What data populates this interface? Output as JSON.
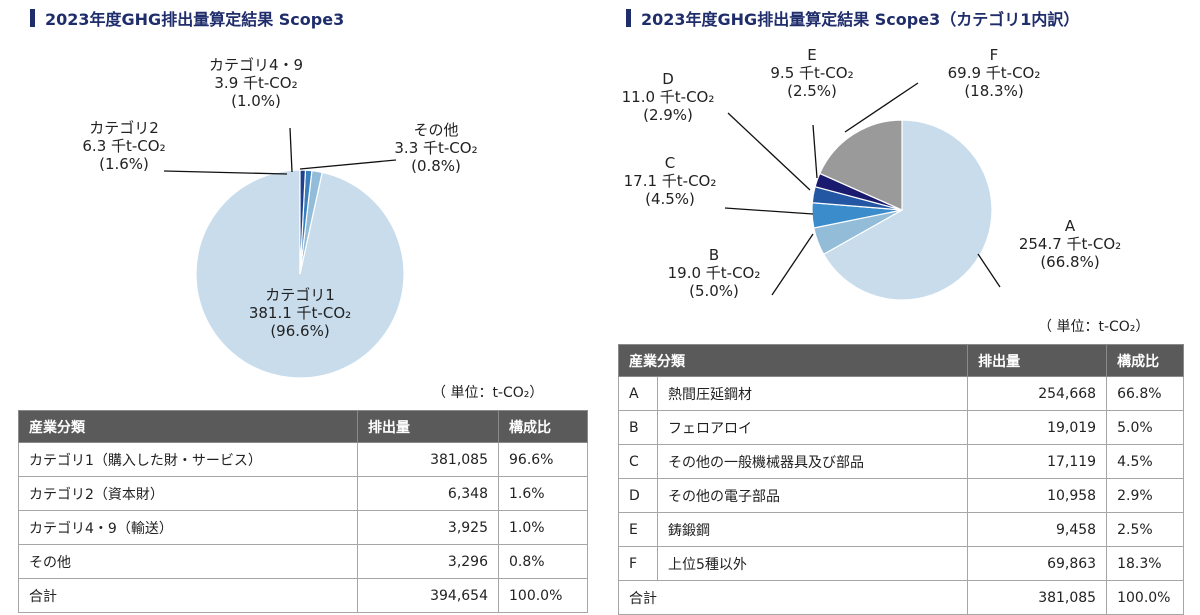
{
  "left": {
    "title": "2023年度GHG排出量算定結果 Scope3",
    "unit": "（ 単位：t-CO₂）",
    "table": {
      "headers": [
        "産業分類",
        "排出量",
        "構成比"
      ],
      "rows": [
        {
          "name": "カテゴリ1（購入した財・サービス）",
          "value": "381,085",
          "share": "96.6%"
        },
        {
          "name": "カテゴリ2（資本財）",
          "value": "6,348",
          "share": "1.6%"
        },
        {
          "name": "カテゴリ4・9（輸送）",
          "value": "3,925",
          "share": "1.0%"
        },
        {
          "name": "その他",
          "value": "3,296",
          "share": "0.8%"
        }
      ],
      "total": {
        "name": "合計",
        "value": "394,654",
        "share": "100.0%"
      }
    }
  },
  "right": {
    "title": "2023年度GHG排出量算定結果 Scope3（カテゴリ1内訳）",
    "unit": "（ 単位：t-CO₂）",
    "table": {
      "headers": [
        "産業分類",
        "排出量",
        "構成比"
      ],
      "rows": [
        {
          "code": "A",
          "name": "熱間圧延鋼材",
          "value": "254,668",
          "share": "66.8%"
        },
        {
          "code": "B",
          "name": "フェロアロイ",
          "value": "19,019",
          "share": "5.0%"
        },
        {
          "code": "C",
          "name": "その他の一般機械器具及び部品",
          "value": "17,119",
          "share": "4.5%"
        },
        {
          "code": "D",
          "name": "その他の電子部品",
          "value": "10,958",
          "share": "2.9%"
        },
        {
          "code": "E",
          "name": "鋳鍛鋼",
          "value": "9,458",
          "share": "2.5%"
        },
        {
          "code": "F",
          "name": "上位5種以外",
          "value": "69,863",
          "share": "18.3%"
        }
      ],
      "total": {
        "name": "合計",
        "value": "381,085",
        "share": "100.0%"
      }
    }
  },
  "chart_data": [
    {
      "type": "pie",
      "title": "2023年度GHG排出量算定結果 Scope3",
      "unit": "千t-CO₂",
      "slices": [
        {
          "name": "カテゴリ1",
          "value": 381.1,
          "percent": "96.6%",
          "color": "#c8dcec",
          "value_label": "381.1 千t-CO₂",
          "pct_label": "(96.6%)"
        },
        {
          "name": "カテゴリ2",
          "value": 6.3,
          "percent": "1.6%",
          "color": "#93bcd9",
          "value_label": "6.3 千t-CO₂",
          "pct_label": "(1.6%)"
        },
        {
          "name": "カテゴリ4・9",
          "value": 3.9,
          "percent": "1.0%",
          "color": "#3a7fbd",
          "value_label": "3.9 千t-CO₂",
          "pct_label": "(1.0%)"
        },
        {
          "name": "その他",
          "value": 3.3,
          "percent": "0.8%",
          "color": "#1f3f8e",
          "value_label": "3.3 千t-CO₂",
          "pct_label": "(0.8%)"
        }
      ]
    },
    {
      "type": "pie",
      "title": "2023年度GHG排出量算定結果 Scope3（カテゴリ1内訳）",
      "unit": "千t-CO₂",
      "slices": [
        {
          "name": "A",
          "value": 254.7,
          "percent": "66.8%",
          "color": "#c8dcec",
          "value_label": "254.7 千t-CO₂",
          "pct_label": "(66.8%)"
        },
        {
          "name": "B",
          "value": 19.0,
          "percent": "5.0%",
          "color": "#93bcd9",
          "value_label": "19.0 千t-CO₂",
          "pct_label": "(5.0%)"
        },
        {
          "name": "C",
          "value": 17.1,
          "percent": "4.5%",
          "color": "#3a8ccb",
          "value_label": "17.1 千t-CO₂",
          "pct_label": "(4.5%)"
        },
        {
          "name": "D",
          "value": 11.0,
          "percent": "2.9%",
          "color": "#2356a3",
          "value_label": "11.0 千t-CO₂",
          "pct_label": "(2.9%)"
        },
        {
          "name": "E",
          "value": 9.5,
          "percent": "2.5%",
          "color": "#1a1a6e",
          "value_label": "9.5 千t-CO₂",
          "pct_label": "(2.5%)"
        },
        {
          "name": "F",
          "value": 69.9,
          "percent": "18.3%",
          "color": "#9a9a9a",
          "value_label": "69.9 千t-CO₂",
          "pct_label": "(18.3%)"
        }
      ]
    }
  ]
}
